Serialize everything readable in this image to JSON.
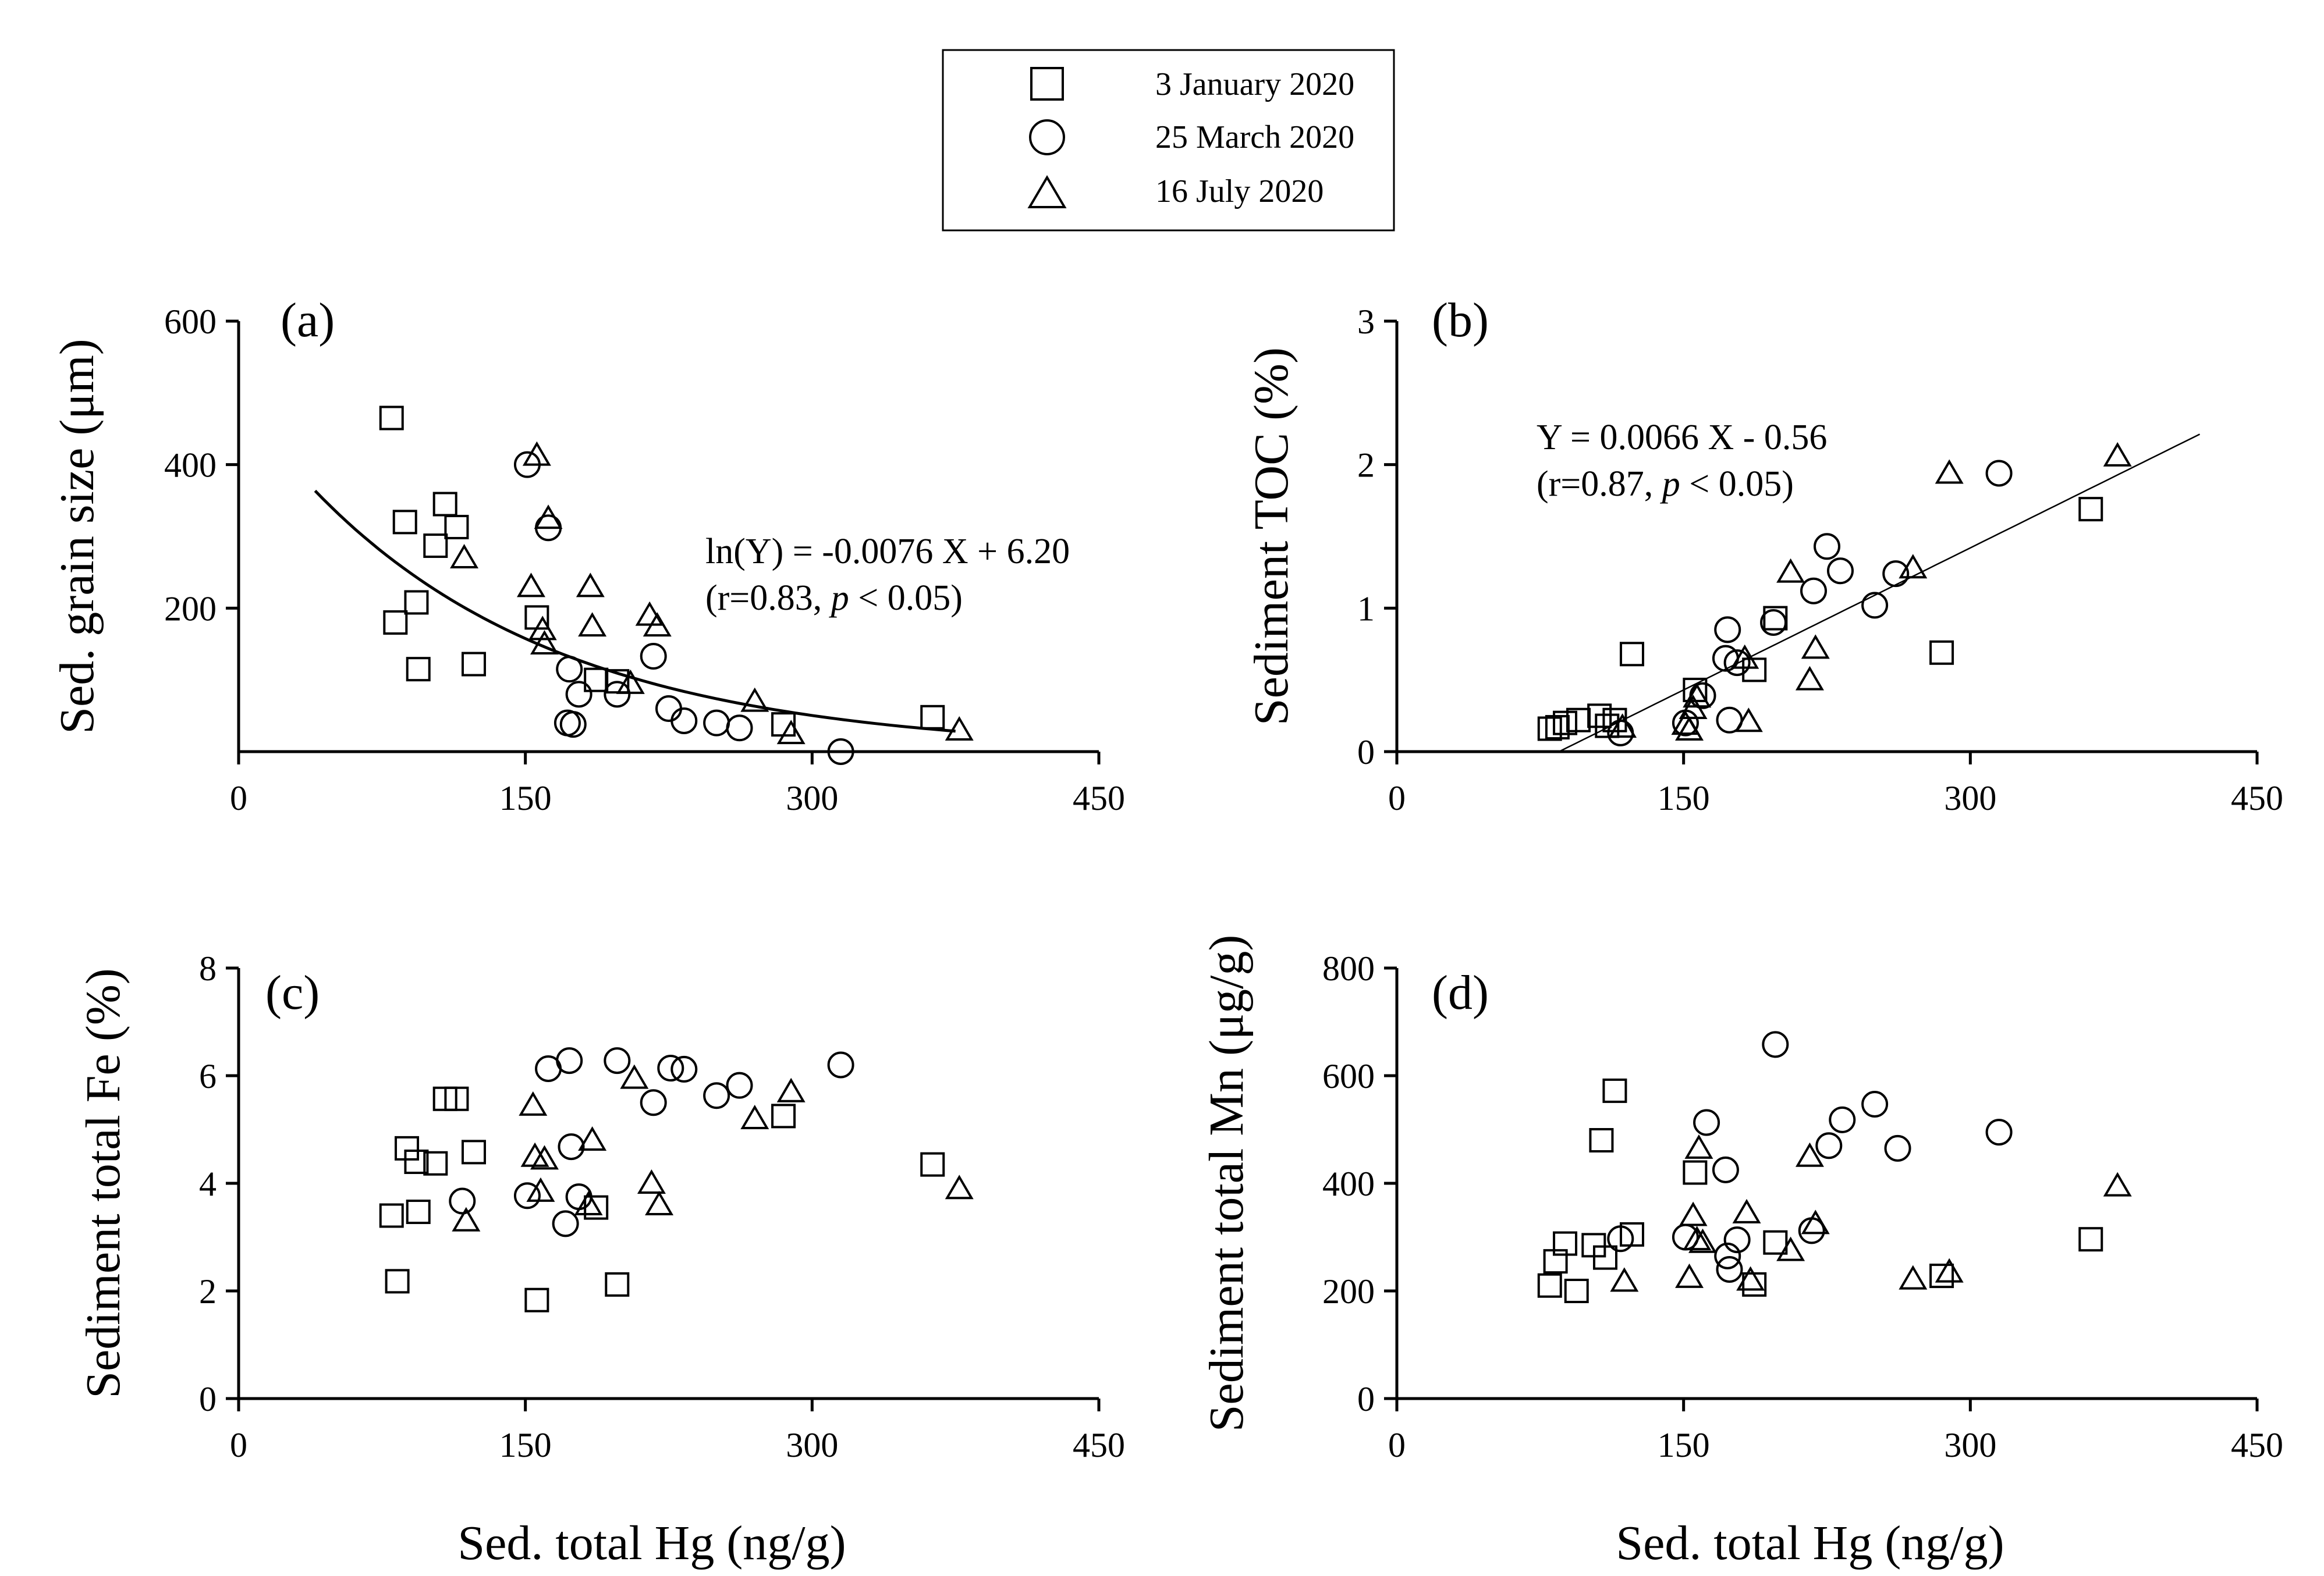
{
  "legend": {
    "items": [
      {
        "marker": "square",
        "label": "3 January 2020"
      },
      {
        "marker": "circle",
        "label": "25 March 2020"
      },
      {
        "marker": "triangle",
        "label": "16 July 2020"
      }
    ]
  },
  "chart_data": [
    {
      "id": "a",
      "type": "scatter",
      "panel_label": "(a)",
      "xlabel": "",
      "ylabel": "Sed. grain size (μm)",
      "xlim": [
        0,
        450
      ],
      "ylim": [
        0,
        600
      ],
      "xticks": [
        0,
        150,
        300,
        450
      ],
      "yticks": [
        200,
        400,
        600
      ],
      "fit": {
        "type": "exponential",
        "slope": -0.0076,
        "intercept": 6.2,
        "x_range": [
          40,
          375
        ]
      },
      "equation": {
        "line1": "ln(Y) = -0.0076 X + 6.20",
        "r_text": "(r=0.83, ",
        "p_symbol": "p",
        "p_rest": " < 0.05)"
      },
      "series": [
        {
          "name": "3 January 2020",
          "marker": "square",
          "points": [
            [
              80,
              465
            ],
            [
              82,
              180
            ],
            [
              87,
              320
            ],
            [
              93,
              208
            ],
            [
              94,
              115
            ],
            [
              103,
              287
            ],
            [
              108,
              345
            ],
            [
              114,
              313
            ],
            [
              123,
              122
            ],
            [
              156,
              187
            ],
            [
              187,
              100
            ],
            [
              198,
              98
            ],
            [
              285,
              38
            ],
            [
              363,
              48
            ]
          ]
        },
        {
          "name": "25 March 2020",
          "marker": "circle",
          "points": [
            [
              151,
              400
            ],
            [
              162,
              312
            ],
            [
              173,
              115
            ],
            [
              172,
              40
            ],
            [
              175,
              38
            ],
            [
              178,
              80
            ],
            [
              198,
              80
            ],
            [
              217,
              133
            ],
            [
              225,
              60
            ],
            [
              233,
              43
            ],
            [
              250,
              40
            ],
            [
              262,
              33
            ],
            [
              315,
              0
            ]
          ]
        },
        {
          "name": "16 July 2020",
          "marker": "triangle",
          "points": [
            [
              118,
              270
            ],
            [
              153,
              230
            ],
            [
              156,
              413
            ],
            [
              159,
              170
            ],
            [
              160,
              150
            ],
            [
              162,
              325
            ],
            [
              184,
              230
            ],
            [
              185,
              175
            ],
            [
              205,
              95
            ],
            [
              215,
              190
            ],
            [
              219,
              175
            ],
            [
              270,
              70
            ],
            [
              289,
              25
            ],
            [
              377,
              30
            ]
          ]
        }
      ]
    },
    {
      "id": "b",
      "type": "scatter",
      "panel_label": "(b)",
      "xlabel": "",
      "ylabel": "Sediment TOC (%)",
      "xlim": [
        0,
        450
      ],
      "ylim": [
        0,
        3
      ],
      "xticks": [
        0,
        150,
        300,
        450
      ],
      "yticks": [
        0,
        1,
        2,
        3
      ],
      "fit": {
        "type": "linear",
        "slope": 0.0066,
        "intercept": -0.56,
        "x_range": [
          85,
          420
        ]
      },
      "equation": {
        "line1": "Y = 0.0066 X - 0.56",
        "r_text": "(r=0.87, ",
        "p_symbol": "p",
        "p_rest": " < 0.05)"
      },
      "series": [
        {
          "name": "3 January 2020",
          "marker": "square",
          "points": [
            [
              80,
              0.16
            ],
            [
              84,
              0.17
            ],
            [
              88,
              0.2
            ],
            [
              95,
              0.22
            ],
            [
              106,
              0.25
            ],
            [
              110,
              0.18
            ],
            [
              114,
              0.22
            ],
            [
              123,
              0.68
            ],
            [
              156,
              0.43
            ],
            [
              187,
              0.57
            ],
            [
              198,
              0.93
            ],
            [
              285,
              0.69
            ],
            [
              363,
              1.69
            ]
          ]
        },
        {
          "name": "25 March 2020",
          "marker": "circle",
          "points": [
            [
              117,
              0.13
            ],
            [
              151,
              0.2
            ],
            [
              160,
              0.39
            ],
            [
              172,
              0.65
            ],
            [
              173,
              0.85
            ],
            [
              174,
              0.22
            ],
            [
              178,
              0.62
            ],
            [
              197,
              0.9
            ],
            [
              218,
              1.12
            ],
            [
              225,
              1.43
            ],
            [
              232,
              1.26
            ],
            [
              250,
              1.02
            ],
            [
              261,
              1.24
            ],
            [
              315,
              1.94
            ]
          ]
        },
        {
          "name": "16 July 2020",
          "marker": "triangle",
          "points": [
            [
              118,
              0.17
            ],
            [
              151,
              0.19
            ],
            [
              153,
              0.15
            ],
            [
              155,
              0.3
            ],
            [
              157,
              0.38
            ],
            [
              182,
              0.65
            ],
            [
              184,
              0.21
            ],
            [
              206,
              1.25
            ],
            [
              216,
              0.5
            ],
            [
              219,
              0.72
            ],
            [
              270,
              1.28
            ],
            [
              289,
              1.94
            ],
            [
              377,
              2.06
            ]
          ]
        }
      ]
    },
    {
      "id": "c",
      "type": "scatter",
      "panel_label": "(c)",
      "xlabel": "Sed. total Hg (ng/g)",
      "ylabel": "Sediment total Fe (%)",
      "xlim": [
        0,
        450
      ],
      "ylim": [
        0,
        8
      ],
      "xticks": [
        0,
        150,
        300,
        450
      ],
      "yticks": [
        0,
        2,
        4,
        6,
        8
      ],
      "series": [
        {
          "name": "3 January 2020",
          "marker": "square",
          "points": [
            [
              80,
              3.4
            ],
            [
              83,
              2.18
            ],
            [
              88,
              4.65
            ],
            [
              93,
              4.4
            ],
            [
              94,
              3.47
            ],
            [
              103,
              4.37
            ],
            [
              108,
              5.57
            ],
            [
              114,
              5.57
            ],
            [
              123,
              4.58
            ],
            [
              156,
              1.83
            ],
            [
              187,
              3.55
            ],
            [
              198,
              2.12
            ],
            [
              285,
              5.25
            ],
            [
              363,
              4.35
            ]
          ]
        },
        {
          "name": "25 March 2020",
          "marker": "circle",
          "points": [
            [
              117,
              3.67
            ],
            [
              151,
              3.77
            ],
            [
              162,
              6.13
            ],
            [
              171,
              3.25
            ],
            [
              173,
              6.28
            ],
            [
              174,
              4.68
            ],
            [
              178,
              3.75
            ],
            [
              198,
              6.28
            ],
            [
              217,
              5.5
            ],
            [
              226,
              6.14
            ],
            [
              233,
              6.12
            ],
            [
              250,
              5.63
            ],
            [
              262,
              5.82
            ],
            [
              315,
              6.2
            ]
          ]
        },
        {
          "name": "16 July 2020",
          "marker": "triangle",
          "points": [
            [
              119,
              3.3
            ],
            [
              154,
              5.45
            ],
            [
              155,
              4.5
            ],
            [
              158,
              3.85
            ],
            [
              160,
              4.45
            ],
            [
              183,
              3.6
            ],
            [
              185,
              4.8
            ],
            [
              207,
              5.95
            ],
            [
              216,
              4.0
            ],
            [
              220,
              3.6
            ],
            [
              270,
              5.2
            ],
            [
              289,
              5.7
            ],
            [
              377,
              3.9
            ]
          ]
        }
      ]
    },
    {
      "id": "d",
      "type": "scatter",
      "panel_label": "(d)",
      "xlabel": "Sed. total Hg (ng/g)",
      "ylabel": "Sediment total Mn (μg/g)",
      "xlim": [
        0,
        450
      ],
      "ylim": [
        0,
        800
      ],
      "xticks": [
        0,
        150,
        300,
        450
      ],
      "yticks": [
        0,
        200,
        400,
        600,
        800
      ],
      "series": [
        {
          "name": "3 January 2020",
          "marker": "square",
          "points": [
            [
              80,
              210
            ],
            [
              83,
              255
            ],
            [
              88,
              288
            ],
            [
              94,
              200
            ],
            [
              103,
              285
            ],
            [
              107,
              480
            ],
            [
              109,
              262
            ],
            [
              114,
              572
            ],
            [
              123,
              305
            ],
            [
              156,
              420
            ],
            [
              187,
              212
            ],
            [
              198,
              290
            ],
            [
              285,
              228
            ],
            [
              363,
              296
            ]
          ]
        },
        {
          "name": "25 March 2020",
          "marker": "circle",
          "points": [
            [
              117,
              297
            ],
            [
              151,
              300
            ],
            [
              162,
              513
            ],
            [
              172,
              425
            ],
            [
              173,
              265
            ],
            [
              174,
              240
            ],
            [
              178,
              295
            ],
            [
              198,
              658
            ],
            [
              217,
              312
            ],
            [
              226,
              470
            ],
            [
              233,
              518
            ],
            [
              250,
              547
            ],
            [
              262,
              465
            ],
            [
              315,
              495
            ]
          ]
        },
        {
          "name": "16 July 2020",
          "marker": "triangle",
          "points": [
            [
              119,
              218
            ],
            [
              153,
              225
            ],
            [
              155,
              340
            ],
            [
              157,
              295
            ],
            [
              158,
              465
            ],
            [
              160,
              290
            ],
            [
              183,
              345
            ],
            [
              185,
              220
            ],
            [
              206,
              275
            ],
            [
              216,
              450
            ],
            [
              219,
              325
            ],
            [
              270,
              222
            ],
            [
              289,
              235
            ],
            [
              377,
              395
            ]
          ]
        }
      ]
    }
  ]
}
